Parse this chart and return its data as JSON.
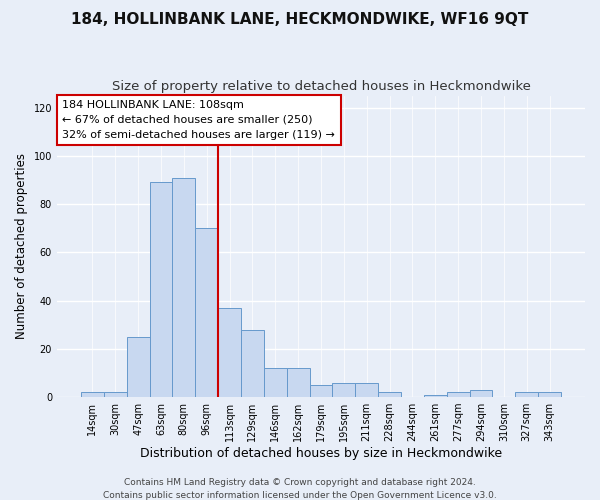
{
  "title": "184, HOLLINBANK LANE, HECKMONDWIKE, WF16 9QT",
  "subtitle": "Size of property relative to detached houses in Heckmondwike",
  "xlabel": "Distribution of detached houses by size in Heckmondwike",
  "ylabel": "Number of detached properties",
  "categories": [
    "14sqm",
    "30sqm",
    "47sqm",
    "63sqm",
    "80sqm",
    "96sqm",
    "113sqm",
    "129sqm",
    "146sqm",
    "162sqm",
    "179sqm",
    "195sqm",
    "211sqm",
    "228sqm",
    "244sqm",
    "261sqm",
    "277sqm",
    "294sqm",
    "310sqm",
    "327sqm",
    "343sqm"
  ],
  "values": [
    2,
    2,
    25,
    89,
    91,
    70,
    37,
    28,
    12,
    12,
    5,
    6,
    6,
    2,
    0,
    1,
    2,
    3,
    0,
    2,
    2
  ],
  "bar_color": "#c8d8f0",
  "bar_edge_color": "#6699cc",
  "background_color": "#e8eef8",
  "vline_x": 5.5,
  "vline_color": "#cc0000",
  "annotation_text": "184 HOLLINBANK LANE: 108sqm\n← 67% of detached houses are smaller (250)\n32% of semi-detached houses are larger (119) →",
  "annotation_box_color": "#ffffff",
  "annotation_box_edge": "#cc0000",
  "footer": "Contains HM Land Registry data © Crown copyright and database right 2024.\nContains public sector information licensed under the Open Government Licence v3.0.",
  "ylim": [
    0,
    125
  ],
  "title_fontsize": 11,
  "subtitle_fontsize": 9.5,
  "xlabel_fontsize": 9,
  "ylabel_fontsize": 8.5,
  "tick_fontsize": 7,
  "annotation_fontsize": 8,
  "footer_fontsize": 6.5
}
